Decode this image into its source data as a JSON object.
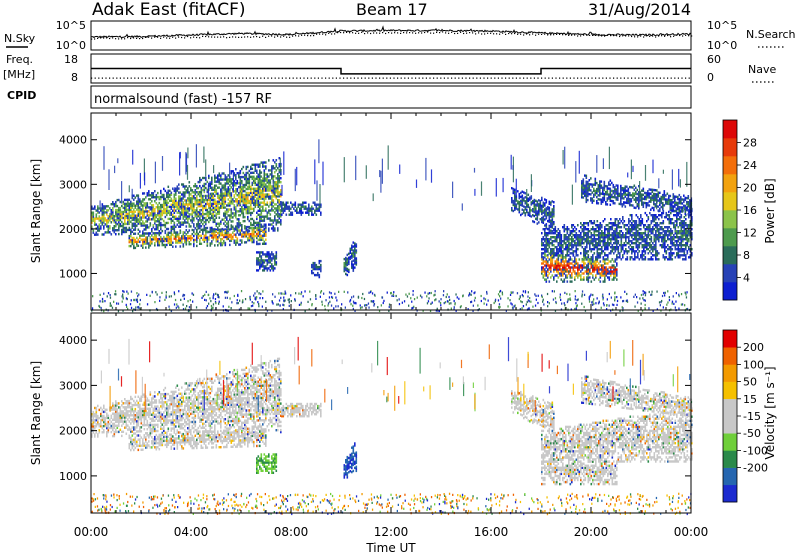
{
  "header": {
    "station": "Adak East (fitACF)",
    "beam": "Beam 17",
    "date": "31/Aug/2014",
    "cpid_text": "normalsound (fast) -157 RF"
  },
  "side_labels": {
    "nsky": "N.Sky",
    "freq": "Freq.",
    "freq_unit": "[MHz]",
    "cpid": "CPID",
    "nsearch": "N.Search",
    "nave": "Nave"
  },
  "chart_data": [
    {
      "type": "line",
      "name": "noise-panel",
      "left_ticks": [
        "10^5",
        "10^0"
      ],
      "right_ticks": [
        "10^5",
        "10^0"
      ],
      "nsky_level": [
        [
          0,
          2.2
        ],
        [
          2,
          2.3
        ],
        [
          4,
          2.6
        ],
        [
          6,
          2.9
        ],
        [
          8,
          2.7
        ],
        [
          10,
          3.4
        ],
        [
          12,
          3.5
        ],
        [
          14,
          3.5
        ],
        [
          16,
          3.4
        ],
        [
          18,
          3.0
        ],
        [
          20,
          2.7
        ],
        [
          22,
          2.6
        ],
        [
          24,
          2.8
        ]
      ],
      "nsearch_level": [
        [
          0,
          2.0
        ],
        [
          4,
          2.3
        ],
        [
          8,
          2.4
        ],
        [
          10,
          3.1
        ],
        [
          14,
          3.2
        ],
        [
          18,
          2.8
        ],
        [
          22,
          2.4
        ],
        [
          24,
          2.6
        ]
      ]
    },
    {
      "type": "line",
      "name": "freq-panel",
      "left_ticks": [
        "18",
        "8"
      ],
      "right_ticks": [
        "60",
        "0"
      ],
      "freq_steps": [
        [
          0,
          13
        ],
        [
          10,
          13
        ],
        [
          10,
          10.4
        ],
        [
          18,
          10.4
        ],
        [
          18,
          13
        ],
        [
          24,
          13
        ]
      ],
      "freq_range": [
        7,
        19
      ],
      "nave_level": 7,
      "nave_range": [
        0,
        60
      ]
    },
    {
      "type": "heatmap",
      "name": "power",
      "ylabel": "Slant Range [km]",
      "ylim": [
        180,
        4600
      ],
      "yticks": [
        "1000",
        "2000",
        "3000",
        "4000"
      ],
      "xlim": [
        0,
        24
      ],
      "colorbar": {
        "label": "Power [dB]",
        "ticks": [
          "28",
          "24",
          "20",
          "16",
          "12",
          "8",
          "4"
        ],
        "colors": [
          "#0d1fd1",
          "#2742b6",
          "#2a6c5a",
          "#4d9a4d",
          "#8bc34a",
          "#e6c619",
          "#f2a20f",
          "#f36e0a",
          "#e73a0a",
          "#dd0808"
        ]
      },
      "echo_regions": [
        {
          "t0": 0.0,
          "t1": 7.6,
          "r_lo_start": 1850,
          "r_lo_end": 1950,
          "r_hi_start": 2500,
          "r_hi_end": 3600,
          "peak": 16
        },
        {
          "t0": 1.5,
          "t1": 7.0,
          "r_lo_start": 1550,
          "r_lo_end": 1650,
          "r_hi_start": 1850,
          "r_hi_end": 2100,
          "peak": 22
        },
        {
          "t0": 7.6,
          "t1": 9.2,
          "r_lo_start": 2300,
          "r_lo_end": 2300,
          "r_hi_start": 2600,
          "r_hi_end": 2600,
          "peak": 6
        },
        {
          "t0": 6.6,
          "t1": 7.4,
          "r_lo_start": 1050,
          "r_lo_end": 1050,
          "r_hi_start": 1500,
          "r_hi_end": 1500,
          "peak": 5
        },
        {
          "t0": 8.8,
          "t1": 9.2,
          "r_lo_start": 900,
          "r_lo_end": 900,
          "r_hi_start": 1300,
          "r_hi_end": 1300,
          "peak": 5
        },
        {
          "t0": 10.1,
          "t1": 10.6,
          "r_lo_start": 900,
          "r_lo_end": 1100,
          "r_hi_start": 1400,
          "r_hi_end": 1800,
          "peak": 5
        },
        {
          "t0": 16.8,
          "t1": 18.5,
          "r_lo_start": 2400,
          "r_lo_end": 1900,
          "r_hi_start": 2900,
          "r_hi_end": 2600,
          "peak": 6
        },
        {
          "t0": 18.0,
          "t1": 24.0,
          "r_lo_start": 1300,
          "r_lo_end": 1300,
          "r_hi_start": 2000,
          "r_hi_end": 2500,
          "peak": 7
        },
        {
          "t0": 19.6,
          "t1": 24.0,
          "r_lo_start": 2600,
          "r_lo_end": 2300,
          "r_hi_start": 3200,
          "r_hi_end": 2700,
          "peak": 6
        },
        {
          "t0": 18.0,
          "t1": 21.0,
          "r_lo_start": 800,
          "r_lo_end": 800,
          "r_hi_start": 1500,
          "r_hi_end": 1300,
          "peak": 26
        }
      ]
    },
    {
      "type": "heatmap",
      "name": "velocity",
      "ylabel": "Slant Range [km]",
      "xlabel": "Time UT",
      "ylim": [
        180,
        4600
      ],
      "yticks": [
        "1000",
        "2000",
        "3000",
        "4000"
      ],
      "xlim": [
        0,
        24
      ],
      "xticks": [
        "00:00",
        "04:00",
        "08:00",
        "12:00",
        "16:00",
        "20:00",
        "00:00"
      ],
      "colorbar": {
        "label": "Velocity [m s⁻¹]",
        "ticks": [
          "200",
          "100",
          "50",
          "15",
          "-15",
          "-50",
          "-100",
          "-200"
        ],
        "colors": [
          "#1c2bd0",
          "#2566b0",
          "#2a8a4a",
          "#6fcf3a",
          "#c8c8c8",
          "#c8c8c8",
          "#f5c000",
          "#f39a00",
          "#ef6200",
          "#e20000"
        ]
      },
      "echo_regions": [
        {
          "t0": 0.0,
          "t1": 7.6,
          "r_lo_start": 1850,
          "r_lo_end": 1950,
          "r_hi_start": 2500,
          "r_hi_end": 3600,
          "vel": "gray"
        },
        {
          "t0": 1.5,
          "t1": 7.0,
          "r_lo_start": 1550,
          "r_lo_end": 1650,
          "r_hi_start": 1850,
          "r_hi_end": 2100,
          "vel": "gray"
        },
        {
          "t0": 7.6,
          "t1": 9.2,
          "r_lo_start": 2300,
          "r_lo_end": 2300,
          "r_hi_start": 2600,
          "r_hi_end": 2600,
          "vel": "gray"
        },
        {
          "t0": 6.6,
          "t1": 7.4,
          "r_lo_start": 1050,
          "r_lo_end": 1050,
          "r_hi_start": 1500,
          "r_hi_end": 1500,
          "vel": "green"
        },
        {
          "t0": 10.1,
          "t1": 10.6,
          "r_lo_start": 900,
          "r_lo_end": 1100,
          "r_hi_start": 1400,
          "r_hi_end": 1800,
          "vel": "blue"
        },
        {
          "t0": 16.8,
          "t1": 18.5,
          "r_lo_start": 2400,
          "r_lo_end": 1900,
          "r_hi_start": 2900,
          "r_hi_end": 2600,
          "vel": "gray"
        },
        {
          "t0": 18.0,
          "t1": 24.0,
          "r_lo_start": 1300,
          "r_lo_end": 1300,
          "r_hi_start": 2000,
          "r_hi_end": 2500,
          "vel": "gray"
        },
        {
          "t0": 19.6,
          "t1": 24.0,
          "r_lo_start": 2600,
          "r_lo_end": 2300,
          "r_hi_start": 3200,
          "r_hi_end": 2700,
          "vel": "gray"
        },
        {
          "t0": 18.0,
          "t1": 21.0,
          "r_lo_start": 800,
          "r_lo_end": 800,
          "r_hi_start": 1500,
          "r_hi_end": 1300,
          "vel": "gray"
        }
      ]
    }
  ]
}
